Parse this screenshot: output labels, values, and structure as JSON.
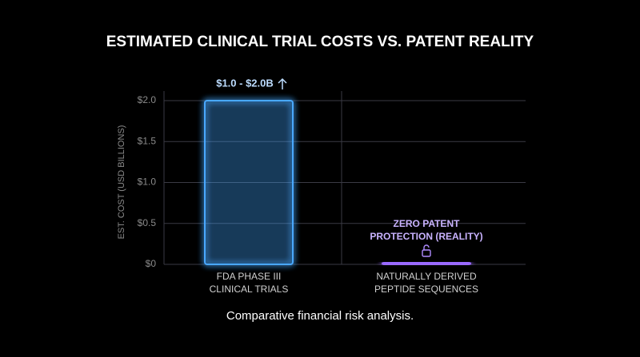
{
  "chart_data": {
    "type": "bar",
    "title": "ESTIMATED CLINICAL TRIAL COSTS VS. PATENT REALITY",
    "y_label": "EST. COST (USD BILLIONS)",
    "caption": "Comparative financial risk analysis.",
    "categories": [
      [
        "FDA PHASE III",
        "CLINICAL TRIALS"
      ],
      [
        "NATURALLY DERIVED",
        "PEPTIDE SEQUENCES"
      ]
    ],
    "values": [
      2.0,
      0.02
    ],
    "colors": [
      "#4aa8ff",
      "#9a6bff"
    ],
    "annotations": [
      "$1.0 - $2.0B",
      [
        "ZERO PATENT",
        "PROTECTION (REALITY)"
      ]
    ],
    "ylim": [
      0,
      2.0
    ],
    "yticks": [
      {
        "value": 0,
        "label": "$0"
      },
      {
        "value": 0.5,
        "label": "$0.5"
      },
      {
        "value": 1.0,
        "label": "$1.0"
      },
      {
        "value": 1.5,
        "label": "$1.5"
      },
      {
        "value": 2.0,
        "label": "$2.0"
      }
    ],
    "grid": true
  }
}
